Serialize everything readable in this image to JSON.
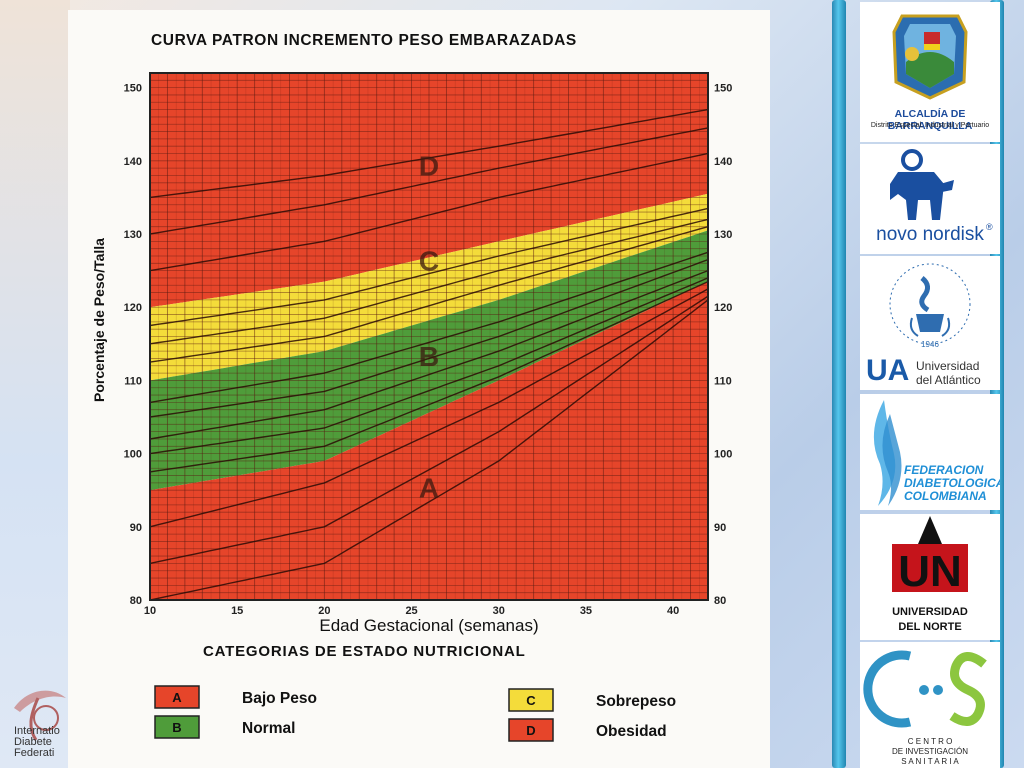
{
  "chart_data": {
    "type": "line",
    "title": "CURVA PATRON INCREMENTO PESO EMBARAZADAS",
    "xlabel": "Edad Gestacional (semanas)",
    "ylabel": "Porcentaje de Peso/Talla",
    "xlim": [
      10,
      42
    ],
    "ylim": [
      80,
      152
    ],
    "x_ticks": [
      10,
      15,
      20,
      25,
      30,
      35,
      40
    ],
    "y_ticks": [
      80,
      90,
      100,
      110,
      120,
      130,
      140,
      150
    ],
    "grid": true,
    "zones": [
      {
        "letter": "D",
        "lower": [
          [
            10,
            120
          ],
          [
            20,
            123.5
          ],
          [
            30,
            129
          ],
          [
            42,
            135.5
          ]
        ],
        "upper": null,
        "color": "#e6452a",
        "label_at": [
          26,
          138
        ]
      },
      {
        "letter": "C",
        "lower": [
          [
            10,
            110
          ],
          [
            20,
            114
          ],
          [
            30,
            121
          ],
          [
            42,
            130.5
          ]
        ],
        "upper": [
          [
            10,
            120
          ],
          [
            20,
            123.5
          ],
          [
            30,
            129
          ],
          [
            42,
            135.5
          ]
        ],
        "color": "#f4dc3a",
        "label_at": [
          26,
          125
        ]
      },
      {
        "letter": "B",
        "lower": [
          [
            10,
            95
          ],
          [
            20,
            99
          ],
          [
            30,
            110
          ],
          [
            42,
            123.5
          ]
        ],
        "upper": [
          [
            10,
            110
          ],
          [
            20,
            114
          ],
          [
            30,
            121
          ],
          [
            42,
            130.5
          ]
        ],
        "color": "#4f9c3a",
        "label_at": [
          26,
          112
        ]
      },
      {
        "letter": "A",
        "lower": null,
        "upper": [
          [
            10,
            95
          ],
          [
            20,
            99
          ],
          [
            30,
            110
          ],
          [
            42,
            123.5
          ]
        ],
        "color": "#e6452a",
        "label_at": [
          26,
          94
        ]
      }
    ],
    "series": [
      {
        "values": [
          [
            10,
            135
          ],
          [
            20,
            138
          ],
          [
            30,
            142
          ],
          [
            42,
            147
          ]
        ]
      },
      {
        "values": [
          [
            10,
            130
          ],
          [
            20,
            134
          ],
          [
            30,
            139
          ],
          [
            42,
            144.5
          ]
        ]
      },
      {
        "values": [
          [
            10,
            125
          ],
          [
            20,
            129
          ],
          [
            30,
            135
          ],
          [
            42,
            141
          ]
        ]
      },
      {
        "values": [
          [
            10,
            117.5
          ],
          [
            20,
            121
          ],
          [
            30,
            127
          ],
          [
            42,
            133.5
          ]
        ]
      },
      {
        "values": [
          [
            10,
            115
          ],
          [
            20,
            118.5
          ],
          [
            30,
            125
          ],
          [
            42,
            132
          ]
        ]
      },
      {
        "values": [
          [
            10,
            112.5
          ],
          [
            20,
            116
          ],
          [
            30,
            123
          ],
          [
            42,
            131
          ]
        ]
      },
      {
        "values": [
          [
            10,
            107
          ],
          [
            20,
            111
          ],
          [
            30,
            118
          ],
          [
            42,
            127.5
          ]
        ]
      },
      {
        "values": [
          [
            10,
            105
          ],
          [
            20,
            108.5
          ],
          [
            30,
            116
          ],
          [
            42,
            126.5
          ]
        ]
      },
      {
        "values": [
          [
            10,
            102
          ],
          [
            20,
            106
          ],
          [
            30,
            114
          ],
          [
            42,
            125
          ]
        ]
      },
      {
        "values": [
          [
            10,
            100
          ],
          [
            20,
            103.5
          ],
          [
            30,
            112
          ],
          [
            42,
            124
          ]
        ]
      },
      {
        "values": [
          [
            10,
            97.5
          ],
          [
            20,
            101
          ],
          [
            30,
            110.5
          ],
          [
            42,
            123.5
          ]
        ]
      },
      {
        "values": [
          [
            10,
            90
          ],
          [
            20,
            96
          ],
          [
            30,
            107
          ],
          [
            42,
            122.5
          ]
        ]
      },
      {
        "values": [
          [
            10,
            85
          ],
          [
            20,
            90
          ],
          [
            30,
            103
          ],
          [
            42,
            121.5
          ]
        ]
      },
      {
        "values": [
          [
            10,
            80
          ],
          [
            20,
            85
          ],
          [
            30,
            99
          ],
          [
            42,
            121
          ]
        ]
      }
    ],
    "legend_title": "CATEGORIAS DE ESTADO NUTRICIONAL",
    "legend": [
      {
        "letter": "A",
        "label": "Bajo Peso",
        "color": "#e6452a"
      },
      {
        "letter": "B",
        "label": "Normal",
        "color": "#4f9c3a"
      },
      {
        "letter": "C",
        "label": "Sobrepeso",
        "color": "#f4dc3a"
      },
      {
        "letter": "D",
        "label": "Obesidad",
        "color": "#e6452a"
      }
    ]
  },
  "sidebar": {
    "logos": [
      {
        "name": "alcaldia-barranquilla",
        "line1": "ALCALDÍA DE BARRANQUILLA",
        "line2": "Distrito Especial, Industrial y Portuario"
      },
      {
        "name": "novo-nordisk",
        "line1": "novo nordisk",
        "line2": "®"
      },
      {
        "name": "universidad-atlantico",
        "line1": "UA",
        "line2": "Universidad",
        "line3": "del Atlántico",
        "line4": "1946"
      },
      {
        "name": "federacion-diabetologica",
        "line1": "FEDERACION",
        "line2": "DIABETOLOGICA",
        "line3": "COLOMBIANA"
      },
      {
        "name": "universidad-norte",
        "line1": "UN",
        "line2": "UNIVERSIDAD",
        "line3": "DEL NORTE"
      },
      {
        "name": "centro-investigacion",
        "line1": "C E N T R O",
        "line2": "DE INVESTIGACIÓN",
        "line3": "S A N I T A R I A"
      }
    ]
  },
  "corner_logo": {
    "line1": "Internatio",
    "line2": "Diabete",
    "line3": "Federati"
  },
  "colors": {
    "red": "#e6452a",
    "yellow": "#f4dc3a",
    "green": "#4f9c3a",
    "accent": "#2f93c5"
  }
}
